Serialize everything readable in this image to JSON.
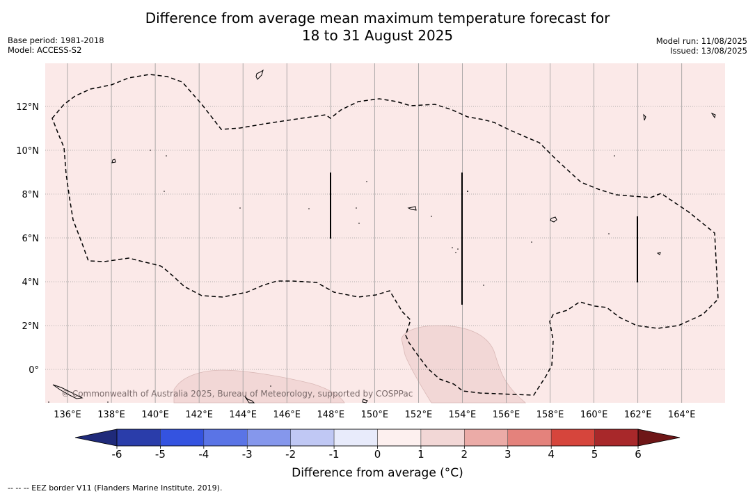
{
  "title": {
    "line1": "Difference from average mean maximum temperature forecast for",
    "line2": "18 to 31 August 2025"
  },
  "meta_left": {
    "base_period": "Base period: 1981-2018",
    "model": "Model: ACCESS-S2"
  },
  "meta_right": {
    "model_run": "Model run: 11/08/2025",
    "issued": "Issued: 13/08/2025"
  },
  "map": {
    "lon_labels": [
      "136°E",
      "138°E",
      "140°E",
      "142°E",
      "144°E",
      "146°E",
      "148°E",
      "150°E",
      "152°E",
      "154°E",
      "156°E",
      "158°E",
      "160°E",
      "162°E",
      "164°E"
    ],
    "lat_labels": [
      "12°N",
      "10°N",
      "8°N",
      "6°N",
      "4°N",
      "2°N",
      "0°"
    ],
    "background_color": "#fbe9e8",
    "warm_patch_color": "#f2d7d6",
    "copyright": "© Commonwealth of Australia 2025, Bureau of Meteorology, supported by COSPPac"
  },
  "colorbar": {
    "ticks": [
      "-6",
      "-5",
      "-4",
      "-3",
      "-2",
      "-1",
      "0",
      "1",
      "2",
      "3",
      "4",
      "5",
      "6"
    ],
    "colors": [
      "#1f2a7a",
      "#2a3daa",
      "#3453e0",
      "#5a74e6",
      "#8597ec",
      "#c0c8f4",
      "#e8ebfb",
      "#fdf0ef",
      "#f2d7d6",
      "#ebaba7",
      "#e4827c",
      "#d6453c",
      "#a8282a",
      "#6e1617"
    ],
    "title": "Difference from average (°C)"
  },
  "footnote": "-- -- -- EEZ border V11 (Flanders Marine Institute, 2019)."
}
